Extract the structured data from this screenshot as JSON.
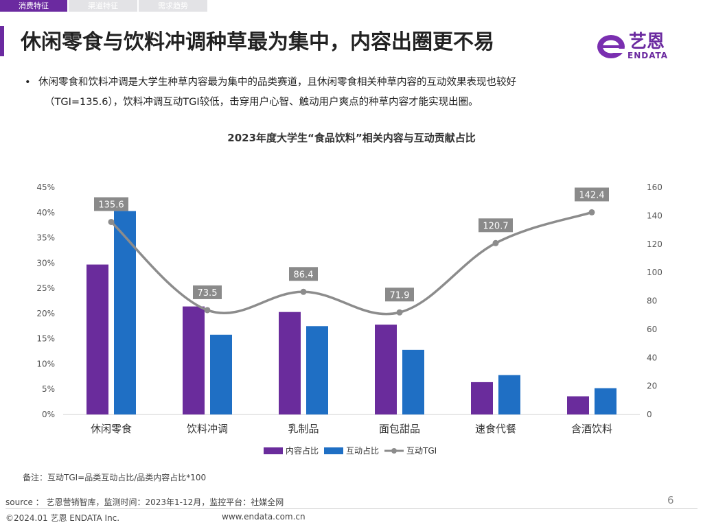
{
  "tabs": [
    {
      "label": "消费特征",
      "active": true
    },
    {
      "label": "渠道特征",
      "active": false
    },
    {
      "label": "需求趋势",
      "active": false
    }
  ],
  "page_title": "休闲零食与饮料冲调种草最为集中，内容出圈更不易",
  "brand": {
    "name": "艺恩",
    "sub": "ENDATA",
    "color": "#6b2aa0"
  },
  "bullet": {
    "line1": "休闲零食和饮料冲调是大学生种草内容最为集中的品类赛道，且休闲零食相关种草内容的互动效果表现也较好",
    "line2": "（TGI=135.6），饮料冲调互动TGI较低，击穿用户心智、触动用户爽点的种草内容才能实现出圈。"
  },
  "chart_data": {
    "type": "bar",
    "title": "2023年度大学生“食品饮料”相关内容与互动贡献占比",
    "categories": [
      "休闲零食",
      "饮料冲调",
      "乳制品",
      "面包甜品",
      "速食代餐",
      "含酒饮料"
    ],
    "series": [
      {
        "name": "内容占比",
        "type": "bar",
        "axis": "left",
        "color": "#6a2c9c",
        "values": [
          29.7,
          21.4,
          20.3,
          17.8,
          6.4,
          3.6
        ]
      },
      {
        "name": "互动占比",
        "type": "bar",
        "axis": "left",
        "color": "#1f6fc4",
        "values": [
          40.3,
          15.8,
          17.5,
          12.8,
          7.8,
          5.2
        ]
      },
      {
        "name": "互动TGI",
        "type": "line",
        "axis": "right",
        "color": "#8c8c8c",
        "values": [
          135.6,
          73.5,
          86.4,
          71.9,
          120.7,
          142.4
        ]
      }
    ],
    "y_left": {
      "min": 0,
      "max": 45,
      "step": 5,
      "format": "percent"
    },
    "y_right": {
      "min": 0,
      "max": 160,
      "step": 20
    },
    "data_labels_series": "互动TGI",
    "legend_position": "bottom-center",
    "grid": false
  },
  "note": "备注：互动TGI=品类互动占比/品类内容占比*100",
  "source": "source ： 艺恩营销智库，监测时间：2023年1-12月，监控平台：社媒全网",
  "page_number": "6",
  "copyright": "©2024.01  艺恩 ENDATA Inc.",
  "website": "www.endata.com.cn"
}
